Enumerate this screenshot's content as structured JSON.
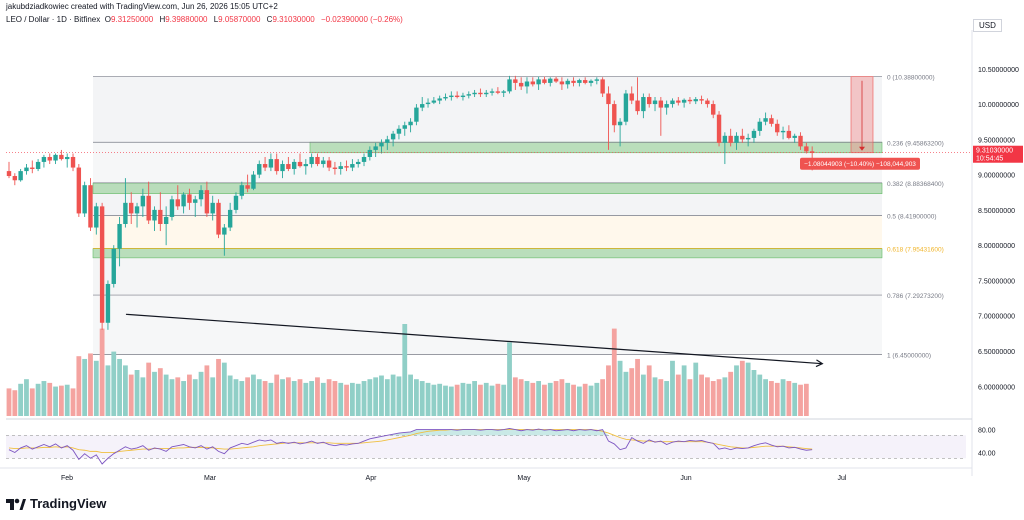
{
  "attribution": "jakubdziadkowiec created with TradingView.com, Jun 26, 2026 15:05 UTC+2",
  "symbol": {
    "name": "LEO / Dollar · 1D · Bitfinex",
    "open_key": "O",
    "open": "9.31250000",
    "high_key": "H",
    "high": "9.39880000",
    "low_key": "L",
    "low": "9.05870000",
    "close_key": "C",
    "close": "9.31030000",
    "change": "−0.02390000 (−0.26%)"
  },
  "currency": "USD",
  "colors": {
    "up": "#26a69a",
    "down": "#ef5350",
    "up_volume": "#90cfc7",
    "down_volume": "#f4a3a0",
    "fib_zone_green": "#a5d6a7",
    "fib_618": "#f0b429",
    "rsi_line": "#7e57c2",
    "rsi_ma": "#f0c040",
    "price_tag": "#f23645"
  },
  "chart_data": {
    "type": "candlestick",
    "title": "LEO / Dollar · 1D · Bitfinex",
    "x_labels": [
      "Feb",
      "Mar",
      "Apr",
      "May",
      "Jun",
      "Jul"
    ],
    "y_ticks": [
      "10.50000000",
      "10.00000000",
      "9.50000000",
      "9.00000000",
      "8.50000000",
      "8.00000000",
      "7.50000000",
      "7.00000000",
      "6.50000000",
      "6.00000000"
    ],
    "y_range": [
      5.55,
      11.05
    ],
    "candles": [
      [
        9.05,
        9.18,
        8.95,
        8.98
      ],
      [
        8.98,
        9.02,
        8.85,
        8.92
      ],
      [
        8.92,
        9.08,
        8.9,
        9.05
      ],
      [
        9.05,
        9.15,
        9.0,
        9.1
      ],
      [
        9.1,
        9.2,
        9.02,
        9.08
      ],
      [
        9.08,
        9.22,
        9.05,
        9.18
      ],
      [
        9.18,
        9.28,
        9.1,
        9.25
      ],
      [
        9.25,
        9.3,
        9.15,
        9.2
      ],
      [
        9.2,
        9.3,
        9.15,
        9.28
      ],
      [
        9.28,
        9.35,
        9.2,
        9.22
      ],
      [
        9.22,
        9.3,
        9.1,
        9.25
      ],
      [
        9.25,
        9.3,
        9.05,
        9.1
      ],
      [
        9.1,
        9.15,
        8.4,
        8.45
      ],
      [
        8.45,
        8.9,
        8.4,
        8.85
      ],
      [
        8.85,
        8.95,
        8.2,
        8.25
      ],
      [
        8.25,
        8.6,
        8.15,
        8.55
      ],
      [
        8.55,
        8.6,
        6.8,
        6.9
      ],
      [
        6.9,
        7.5,
        6.8,
        7.45
      ],
      [
        7.45,
        8.0,
        7.4,
        7.95
      ],
      [
        7.95,
        8.4,
        7.7,
        8.3
      ],
      [
        8.3,
        8.95,
        8.25,
        8.6
      ],
      [
        8.6,
        8.75,
        8.3,
        8.45
      ],
      [
        8.45,
        8.6,
        8.25,
        8.55
      ],
      [
        8.55,
        8.8,
        8.4,
        8.7
      ],
      [
        8.7,
        8.9,
        8.3,
        8.35
      ],
      [
        8.35,
        8.55,
        8.2,
        8.5
      ],
      [
        8.5,
        8.75,
        8.2,
        8.3
      ],
      [
        8.3,
        8.55,
        8.0,
        8.4
      ],
      [
        8.4,
        8.7,
        8.35,
        8.65
      ],
      [
        8.65,
        8.85,
        8.5,
        8.55
      ],
      [
        8.55,
        8.75,
        8.45,
        8.72
      ],
      [
        8.72,
        8.8,
        8.5,
        8.6
      ],
      [
        8.6,
        8.7,
        8.4,
        8.65
      ],
      [
        8.65,
        8.85,
        8.55,
        8.78
      ],
      [
        8.78,
        8.9,
        8.4,
        8.45
      ],
      [
        8.45,
        8.7,
        8.35,
        8.6
      ],
      [
        8.6,
        8.65,
        8.1,
        8.15
      ],
      [
        8.15,
        8.3,
        7.85,
        8.25
      ],
      [
        8.25,
        8.6,
        8.2,
        8.5
      ],
      [
        8.5,
        8.75,
        8.45,
        8.7
      ],
      [
        8.7,
        8.9,
        8.65,
        8.85
      ],
      [
        8.85,
        9.0,
        8.75,
        8.8
      ],
      [
        8.8,
        9.05,
        8.78,
        9.0
      ],
      [
        9.0,
        9.2,
        8.95,
        9.15
      ],
      [
        9.15,
        9.25,
        9.05,
        9.1
      ],
      [
        9.1,
        9.3,
        9.05,
        9.22
      ],
      [
        9.22,
        9.3,
        9.0,
        9.05
      ],
      [
        9.05,
        9.2,
        8.95,
        9.15
      ],
      [
        9.15,
        9.25,
        9.05,
        9.08
      ],
      [
        9.08,
        9.22,
        9.0,
        9.18
      ],
      [
        9.18,
        9.3,
        9.1,
        9.12
      ],
      [
        9.12,
        9.22,
        9.0,
        9.15
      ],
      [
        9.15,
        9.3,
        9.1,
        9.25
      ],
      [
        9.25,
        9.3,
        9.12,
        9.15
      ],
      [
        9.15,
        9.25,
        9.1,
        9.2
      ],
      [
        9.2,
        9.25,
        9.05,
        9.1
      ],
      [
        9.1,
        9.18,
        9.0,
        9.08
      ],
      [
        9.08,
        9.18,
        9.0,
        9.12
      ],
      [
        9.12,
        9.2,
        9.05,
        9.1
      ],
      [
        9.1,
        9.22,
        9.05,
        9.15
      ],
      [
        9.15,
        9.22,
        9.1,
        9.18
      ],
      [
        9.18,
        9.3,
        9.12,
        9.25
      ],
      [
        9.25,
        9.4,
        9.2,
        9.35
      ],
      [
        9.35,
        9.45,
        9.25,
        9.4
      ],
      [
        9.4,
        9.5,
        9.3,
        9.45
      ],
      [
        9.45,
        9.55,
        9.35,
        9.5
      ],
      [
        9.5,
        9.62,
        9.4,
        9.58
      ],
      [
        9.58,
        9.7,
        9.5,
        9.65
      ],
      [
        9.65,
        9.75,
        9.55,
        9.7
      ],
      [
        9.7,
        9.8,
        9.6,
        9.75
      ],
      [
        9.75,
        10.0,
        9.7,
        9.95
      ],
      [
        9.95,
        10.1,
        9.9,
        10.0
      ],
      [
        10.0,
        10.08,
        9.95,
        10.02
      ],
      [
        10.02,
        10.1,
        10.0,
        10.05
      ],
      [
        10.05,
        10.12,
        10.0,
        10.08
      ],
      [
        10.08,
        10.15,
        10.05,
        10.1
      ],
      [
        10.1,
        10.18,
        10.05,
        10.12
      ],
      [
        10.12,
        10.18,
        10.08,
        10.1
      ],
      [
        10.1,
        10.16,
        10.05,
        10.12
      ],
      [
        10.12,
        10.18,
        10.08,
        10.14
      ],
      [
        10.14,
        10.2,
        10.1,
        10.16
      ],
      [
        10.16,
        10.22,
        10.1,
        10.14
      ],
      [
        10.14,
        10.2,
        10.1,
        10.16
      ],
      [
        10.16,
        10.22,
        10.12,
        10.18
      ],
      [
        10.18,
        10.24,
        10.14,
        10.16
      ],
      [
        10.16,
        10.2,
        10.1,
        10.18
      ],
      [
        10.18,
        10.4,
        10.15,
        10.35
      ],
      [
        10.35,
        10.4,
        10.2,
        10.3
      ],
      [
        10.3,
        10.38,
        10.2,
        10.25
      ],
      [
        10.25,
        10.38,
        10.15,
        10.32
      ],
      [
        10.32,
        10.38,
        10.25,
        10.28
      ],
      [
        10.28,
        10.39,
        10.2,
        10.35
      ],
      [
        10.35,
        10.39,
        10.28,
        10.3
      ],
      [
        10.3,
        10.38,
        10.25,
        10.36
      ],
      [
        10.36,
        10.39,
        10.3,
        10.32
      ],
      [
        10.32,
        10.38,
        10.2,
        10.28
      ],
      [
        10.28,
        10.36,
        10.22,
        10.33
      ],
      [
        10.33,
        10.38,
        10.25,
        10.3
      ],
      [
        10.3,
        10.36,
        10.25,
        10.34
      ],
      [
        10.34,
        10.38,
        10.28,
        10.3
      ],
      [
        10.3,
        10.35,
        10.25,
        10.33
      ],
      [
        10.33,
        10.38,
        10.28,
        10.35
      ],
      [
        10.35,
        10.38,
        10.1,
        10.15
      ],
      [
        10.15,
        10.25,
        9.35,
        10.0
      ],
      [
        10.0,
        10.05,
        9.6,
        9.7
      ],
      [
        9.7,
        9.8,
        9.4,
        9.75
      ],
      [
        9.75,
        10.2,
        9.7,
        10.15
      ],
      [
        10.15,
        10.25,
        10.0,
        10.05
      ],
      [
        10.05,
        10.38,
        9.85,
        9.9
      ],
      [
        9.9,
        10.15,
        9.8,
        10.1
      ],
      [
        10.1,
        10.15,
        9.95,
        10.0
      ],
      [
        10.0,
        10.1,
        9.9,
        10.05
      ],
      [
        10.05,
        10.1,
        9.55,
        9.95
      ],
      [
        9.95,
        10.05,
        9.85,
        10.0
      ],
      [
        10.0,
        10.08,
        9.95,
        10.05
      ],
      [
        10.05,
        10.1,
        9.98,
        10.02
      ],
      [
        10.02,
        10.08,
        9.95,
        10.06
      ],
      [
        10.06,
        10.1,
        10.0,
        10.04
      ],
      [
        10.04,
        10.1,
        10.0,
        10.07
      ],
      [
        10.07,
        10.12,
        10.0,
        10.05
      ],
      [
        10.05,
        10.08,
        9.95,
        10.0
      ],
      [
        10.0,
        10.05,
        9.8,
        9.85
      ],
      [
        9.85,
        9.9,
        9.4,
        9.45
      ],
      [
        9.45,
        9.6,
        9.15,
        9.55
      ],
      [
        9.55,
        9.65,
        9.4,
        9.45
      ],
      [
        9.45,
        9.6,
        9.35,
        9.55
      ],
      [
        9.55,
        9.65,
        9.45,
        9.5
      ],
      [
        9.5,
        9.58,
        9.4,
        9.52
      ],
      [
        9.52,
        9.65,
        9.45,
        9.62
      ],
      [
        9.62,
        9.8,
        9.55,
        9.75
      ],
      [
        9.75,
        9.88,
        9.7,
        9.8
      ],
      [
        9.8,
        9.85,
        9.68,
        9.72
      ],
      [
        9.72,
        9.78,
        9.55,
        9.6
      ],
      [
        9.6,
        9.68,
        9.5,
        9.62
      ],
      [
        9.62,
        9.7,
        9.5,
        9.52
      ],
      [
        9.52,
        9.58,
        9.45,
        9.55
      ],
      [
        9.55,
        9.6,
        9.35,
        9.4
      ],
      [
        9.4,
        9.45,
        9.3,
        9.33
      ],
      [
        9.33,
        9.4,
        9.06,
        9.31
      ]
    ],
    "volumes": [
      0.3,
      0.28,
      0.35,
      0.4,
      0.3,
      0.35,
      0.38,
      0.36,
      0.32,
      0.33,
      0.34,
      0.3,
      0.65,
      0.62,
      0.68,
      0.6,
      0.95,
      0.55,
      0.7,
      0.62,
      0.55,
      0.45,
      0.5,
      0.42,
      0.58,
      0.48,
      0.52,
      0.45,
      0.4,
      0.42,
      0.38,
      0.45,
      0.4,
      0.48,
      0.55,
      0.42,
      0.62,
      0.58,
      0.44,
      0.4,
      0.38,
      0.42,
      0.45,
      0.4,
      0.38,
      0.36,
      0.45,
      0.4,
      0.42,
      0.38,
      0.4,
      0.36,
      0.38,
      0.42,
      0.36,
      0.4,
      0.38,
      0.36,
      0.34,
      0.36,
      0.35,
      0.38,
      0.4,
      0.42,
      0.44,
      0.4,
      0.45,
      0.43,
      1.0,
      0.45,
      0.4,
      0.38,
      0.36,
      0.34,
      0.35,
      0.33,
      0.32,
      0.34,
      0.36,
      0.35,
      0.38,
      0.34,
      0.36,
      0.33,
      0.35,
      0.34,
      0.8,
      0.42,
      0.4,
      0.38,
      0.36,
      0.38,
      0.34,
      0.36,
      0.38,
      0.4,
      0.36,
      0.34,
      0.32,
      0.35,
      0.33,
      0.36,
      0.4,
      0.55,
      0.95,
      0.6,
      0.48,
      0.52,
      0.62,
      0.45,
      0.55,
      0.42,
      0.4,
      0.38,
      0.6,
      0.45,
      0.55,
      0.4,
      0.58,
      0.45,
      0.42,
      0.38,
      0.4,
      0.42,
      0.48,
      0.55,
      0.6,
      0.58,
      0.5,
      0.45,
      0.4,
      0.38,
      0.36,
      0.4,
      0.38,
      0.36,
      0.34,
      0.35
    ],
    "fib_levels": [
      {
        "ratio": "0",
        "price": 10.388,
        "label": "0 (10.38800000)",
        "color": "#787b86"
      },
      {
        "ratio": "0.236",
        "price": 9.45863,
        "label": "0.236 (9.45863200)",
        "color": "#787b86"
      },
      {
        "ratio": "0.382",
        "price": 8.88368,
        "label": "0.382 (8.88368400)",
        "color": "#787b86"
      },
      {
        "ratio": "0.5",
        "price": 8.419,
        "label": "0.5 (8.41900000)",
        "color": "#787b86"
      },
      {
        "ratio": "0.618",
        "price": 7.95432,
        "label": "0.618 (7.95431600)",
        "color": "#f0b429"
      },
      {
        "ratio": "0.786",
        "price": 7.29273,
        "label": "0.786 (7.29273200)",
        "color": "#787b86"
      },
      {
        "ratio": "1",
        "price": 6.45,
        "label": "1 (6.45000000)",
        "color": "#787b86"
      }
    ],
    "support_zones": [
      [
        9.31,
        9.46
      ],
      [
        8.73,
        8.88
      ],
      [
        7.82,
        7.95
      ]
    ],
    "trend_line": {
      "from_index": 17,
      "from_price": 7.02,
      "to_index": 137,
      "to_price": 6.32
    },
    "measure": {
      "from_price": 10.388,
      "to_price": 9.31,
      "label": "−1.08044903 (−10.40%) −108,044,903"
    },
    "last_price": {
      "value": "9.31030000",
      "countdown": "10:54:45",
      "price": 9.3103
    },
    "rsi": {
      "y_ticks": [
        "80.00",
        "40.00"
      ],
      "levels": [
        70,
        30
      ],
      "values": [
        45,
        40,
        48,
        52,
        46,
        50,
        54,
        50,
        55,
        48,
        52,
        44,
        28,
        38,
        30,
        36,
        20,
        30,
        38,
        44,
        50,
        46,
        48,
        52,
        44,
        48,
        46,
        42,
        50,
        52,
        54,
        50,
        48,
        52,
        46,
        50,
        42,
        38,
        48,
        52,
        56,
        54,
        58,
        62,
        60,
        62,
        56,
        58,
        56,
        58,
        55,
        57,
        60,
        56,
        58,
        54,
        52,
        54,
        53,
        55,
        56,
        60,
        64,
        66,
        68,
        70,
        72,
        74,
        75,
        76,
        80,
        80,
        80,
        80,
        80,
        80,
        80,
        79,
        80,
        80,
        80,
        79,
        80,
        80,
        79,
        80,
        82,
        80,
        78,
        80,
        79,
        81,
        79,
        80,
        78,
        79,
        80,
        78,
        80,
        79,
        80,
        78,
        80,
        60,
        55,
        45,
        48,
        66,
        60,
        56,
        62,
        58,
        60,
        54,
        58,
        60,
        59,
        61,
        60,
        61,
        58,
        56,
        46,
        48,
        45,
        48,
        47,
        48,
        52,
        55,
        57,
        53,
        50,
        51,
        48,
        49,
        46,
        44,
        45
      ],
      "ma": [
        48,
        47,
        47,
        48,
        48,
        48,
        49,
        49,
        50,
        49,
        50,
        48,
        45,
        44,
        42,
        42,
        40,
        40,
        40,
        42,
        43,
        44,
        45,
        46,
        46,
        47,
        47,
        47,
        47,
        48,
        48,
        49,
        49,
        49,
        49,
        48,
        47,
        46,
        46,
        47,
        48,
        49,
        50,
        52,
        53,
        54,
        55,
        56,
        57,
        57,
        57,
        57,
        57,
        57,
        57,
        57,
        56,
        56,
        56,
        56,
        56,
        57,
        58,
        59,
        60,
        62,
        64,
        66,
        68,
        70,
        73,
        75,
        77,
        78,
        79,
        79,
        80,
        80,
        80,
        80,
        80,
        80,
        80,
        80,
        80,
        80,
        80,
        80,
        80,
        80,
        80,
        80,
        80,
        80,
        80,
        80,
        80,
        80,
        80,
        80,
        80,
        79,
        77,
        74,
        70,
        66,
        63,
        62,
        61,
        60,
        60,
        59,
        59,
        59,
        59,
        59,
        59,
        59,
        59,
        59,
        58,
        56,
        54,
        52,
        50,
        49,
        48,
        48,
        49,
        50,
        51,
        51,
        51,
        51,
        50,
        49,
        48,
        47,
        46
      ]
    }
  }
}
